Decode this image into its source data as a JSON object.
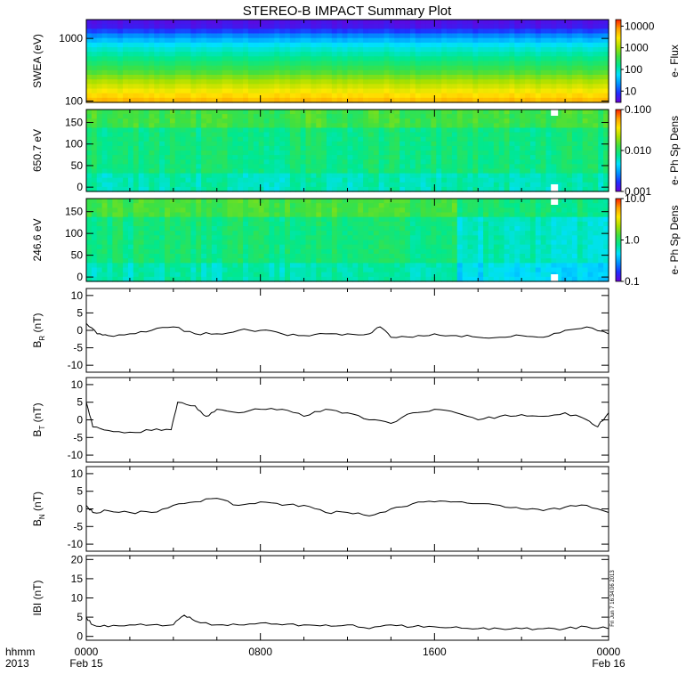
{
  "chart_data": {
    "title": "STEREO-B IMPACT Summary Plot",
    "colors": {
      "line": "#000000",
      "void": "#ffffff",
      "colormap": [
        "#6a00d8",
        "#1f2dff",
        "#0090ff",
        "#00e0ff",
        "#00e890",
        "#40e040",
        "#a8e000",
        "#ffe800",
        "#ffa000",
        "#ff2000"
      ]
    },
    "x_axis": {
      "range": [
        "2013-02-15T00:00",
        "2013-02-16T00:00"
      ],
      "ticks": [
        "0000",
        "0800",
        "1600",
        "0000"
      ],
      "date_labels": [
        "Feb 15",
        "Feb 16"
      ],
      "left_label": [
        "hhmm",
        "2013"
      ]
    },
    "stamp": "Fri Jun  7 16:34:06 2013",
    "panels": [
      {
        "type": "heatmap",
        "ylabel": "SWEA (eV)",
        "y_scale": "log",
        "ylim": [
          95,
          2000
        ],
        "yticks": [
          100,
          1000
        ],
        "ytick_labels": [
          "100",
          "1000"
        ],
        "colorbar": {
          "label": "e- Flux",
          "scale": "log",
          "range": [
            3,
            20000
          ],
          "ticks": [
            10,
            100,
            1000,
            10000
          ],
          "tick_labels": [
            "10",
            "100",
            "1000",
            "10000"
          ]
        },
        "profile": {
          "energy_eV": [
            95,
            130,
            200,
            300,
            500,
            800,
            1100,
            1300,
            1500,
            2000
          ],
          "flux": [
            6000,
            3000,
            1200,
            400,
            150,
            60,
            20,
            10,
            5,
            4
          ]
        }
      },
      {
        "type": "heatmap",
        "ylabel": "650.7 eV",
        "ylim": [
          -10,
          180
        ],
        "yticks": [
          0,
          50,
          100,
          150
        ],
        "ytick_labels": [
          "0",
          "50",
          "100",
          "150"
        ],
        "colorbar": {
          "label": "e- Ph Sp Dens",
          "scale": "log",
          "range": [
            0.001,
            0.1
          ],
          "ticks": [
            0.001,
            0.01,
            0.1
          ],
          "tick_labels": [
            "0.001",
            "0.010",
            "0.100"
          ]
        }
      },
      {
        "type": "heatmap",
        "ylabel": "246.6 eV",
        "ylim": [
          -10,
          180
        ],
        "yticks": [
          0,
          50,
          100,
          150
        ],
        "ytick_labels": [
          "0",
          "50",
          "100",
          "150"
        ],
        "colorbar": {
          "label": "e- Ph Sp Dens",
          "scale": "log",
          "range": [
            0.1,
            10
          ],
          "ticks": [
            0.1,
            1,
            10
          ],
          "tick_labels": [
            "0.1",
            "1.0",
            "10.0"
          ]
        }
      },
      {
        "type": "line",
        "ylabel": "B",
        "ylabel_sub": "R",
        "ylabel_unit": " (nT)",
        "ylim": [
          -12,
          12
        ],
        "yticks": [
          -10,
          -5,
          0,
          5,
          10
        ],
        "ytick_labels": [
          "-10",
          "-5",
          "0",
          "5",
          "10"
        ],
        "x_hours": [
          0,
          0.5,
          1,
          2,
          3,
          4,
          5,
          6,
          7,
          8,
          9,
          10,
          11,
          12,
          13,
          13.5,
          14,
          15,
          16,
          17,
          18,
          19,
          20,
          21,
          22,
          23,
          24
        ],
        "values": [
          2,
          -1,
          -1.5,
          -1,
          0,
          1,
          -1,
          -1,
          0,
          0,
          -1,
          -1.5,
          -1,
          -1,
          -1,
          1,
          -2,
          -2,
          -1,
          -1.5,
          -2,
          -2,
          -1.5,
          -2,
          0,
          1,
          -1
        ]
      },
      {
        "type": "line",
        "ylabel": "B",
        "ylabel_sub": "T",
        "ylabel_unit": " (nT)",
        "ylim": [
          -12,
          12
        ],
        "yticks": [
          -10,
          -5,
          0,
          5,
          10
        ],
        "ytick_labels": [
          "-10",
          "-5",
          "0",
          "5",
          "10"
        ],
        "x_hours": [
          0,
          0.3,
          1,
          2,
          3,
          3.9,
          4.2,
          5,
          5.5,
          6,
          7,
          8,
          9,
          10,
          11,
          12,
          13,
          14,
          15,
          16,
          17,
          18,
          19,
          20,
          21,
          22,
          23,
          23.5,
          24
        ],
        "values": [
          5,
          -2,
          -3,
          -3.5,
          -3,
          -2.8,
          5,
          4,
          1,
          3,
          2,
          3,
          3,
          1,
          3,
          2,
          0,
          -1,
          2,
          3,
          2,
          0,
          1,
          1.5,
          1,
          2,
          0,
          -2,
          2
        ]
      },
      {
        "type": "line",
        "ylabel": "B",
        "ylabel_sub": "N",
        "ylabel_unit": " (nT)",
        "ylim": [
          -12,
          12
        ],
        "yticks": [
          -10,
          -5,
          0,
          5,
          10
        ],
        "ytick_labels": [
          "-10",
          "-5",
          "0",
          "5",
          "10"
        ],
        "x_hours": [
          0,
          0.3,
          1,
          2,
          3,
          4,
          5,
          6,
          7,
          8,
          9,
          10,
          11,
          12,
          13,
          14,
          15,
          16,
          17,
          18,
          19,
          20,
          21,
          22,
          23,
          24
        ],
        "values": [
          1,
          -1,
          -0.5,
          -1,
          -1,
          1,
          2,
          3,
          1,
          2,
          1,
          1,
          -1,
          -1,
          -2,
          0,
          1.5,
          2,
          2,
          1.5,
          1,
          0,
          -0.5,
          0.5,
          1,
          -1
        ]
      },
      {
        "type": "line",
        "ylabel": "IBI (nT)",
        "ylim": [
          -1,
          21
        ],
        "yticks": [
          0,
          5,
          10,
          15,
          20
        ],
        "ytick_labels": [
          "0",
          "5",
          "10",
          "15",
          "20"
        ],
        "x_hours": [
          0,
          0.3,
          1,
          2,
          3,
          4,
          4.5,
          5,
          6,
          7,
          8,
          9,
          10,
          11,
          12,
          13,
          14,
          15,
          16,
          17,
          18,
          19,
          20,
          21,
          22,
          23,
          24
        ],
        "values": [
          5,
          3,
          2.5,
          3,
          3,
          3,
          5.5,
          4,
          3,
          3,
          3.5,
          3,
          3,
          3,
          3,
          2,
          3,
          2.5,
          2.5,
          2.5,
          2,
          2,
          2,
          2,
          2,
          2.5,
          2
        ]
      }
    ]
  }
}
